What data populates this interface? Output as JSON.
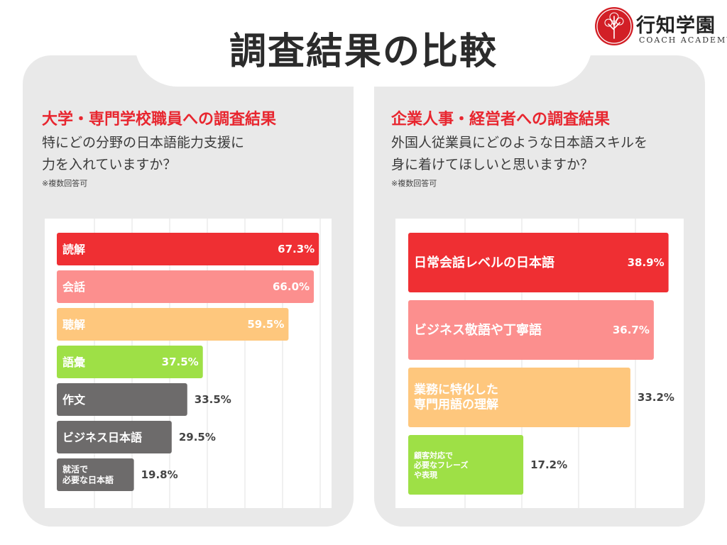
{
  "title": "調査結果の比較",
  "logo": {
    "name": "行知学園",
    "subtitle": "COACH ACADEMY"
  },
  "colors": {
    "red": "#ef2f33",
    "pink": "#fc8f8e",
    "orange": "#fec77d",
    "green": "#9ee046",
    "gray": "#6d6b6b"
  },
  "left": {
    "heading": "大学・専門学校職員への調査結果",
    "question_line1": "特にどの分野の日本語能力支援に",
    "question_line2": "力を入れていますか？",
    "note": "※複数回答可"
  },
  "right": {
    "heading": "企業人事・経営者への調査結果",
    "question_line1": "外国人従業員にどのような日本語スキルを",
    "question_line2": "身に着けてほしいと思いますか？",
    "note": "※複数回答可"
  },
  "chart_data": [
    {
      "type": "bar",
      "orientation": "horizontal",
      "categories": [
        "読解",
        "会話",
        "聴解",
        "語彙",
        "作文",
        "ビジネス日本語",
        "就活で\n必要な日本語"
      ],
      "values": [
        67.3,
        66.0,
        59.5,
        37.5,
        33.5,
        29.5,
        19.8
      ],
      "labels": [
        "67.3%",
        "66.0%",
        "59.5%",
        "37.5%",
        "33.5%",
        "29.5%",
        "19.8%"
      ],
      "bar_colors": [
        "red",
        "pink",
        "orange",
        "green",
        "gray",
        "gray",
        "gray"
      ],
      "xlim": [
        0,
        70
      ],
      "grid": true
    },
    {
      "type": "bar",
      "orientation": "horizontal",
      "categories": [
        "日常会話レベルの日本語",
        "ビジネス敬語や丁寧語",
        "業務に特化した\n専門用語の理解",
        "顧客対応で\n必要なフレーズ\nや表現"
      ],
      "values": [
        38.9,
        36.7,
        33.2,
        17.2
      ],
      "labels": [
        "38.9%",
        "36.7%",
        "33.2%",
        "17.2%"
      ],
      "bar_colors": [
        "red",
        "pink",
        "orange",
        "green"
      ],
      "xlim": [
        0,
        40
      ],
      "grid": true
    }
  ]
}
